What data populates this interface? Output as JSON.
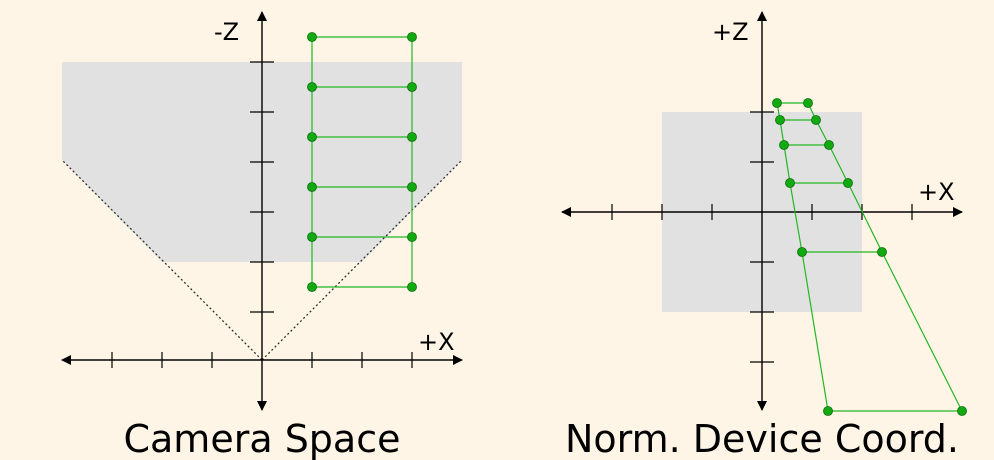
{
  "colors": {
    "background": "#fff5e6",
    "view_region": "#e1e1e1",
    "axis": "#000000",
    "frustum_line": "#333333",
    "grid_stroke": "#22b822",
    "grid_point_fill": "#11aa11",
    "grid_point_stroke": "#0b6b0b"
  },
  "camera_space": {
    "caption": "Camera Space",
    "vertical_axis_label": "-Z",
    "horizontal_axis_label": "+X"
  },
  "ndc": {
    "caption": "Norm. Device Coord.",
    "vertical_axis_label": "+Z",
    "horizontal_axis_label": "+X"
  }
}
